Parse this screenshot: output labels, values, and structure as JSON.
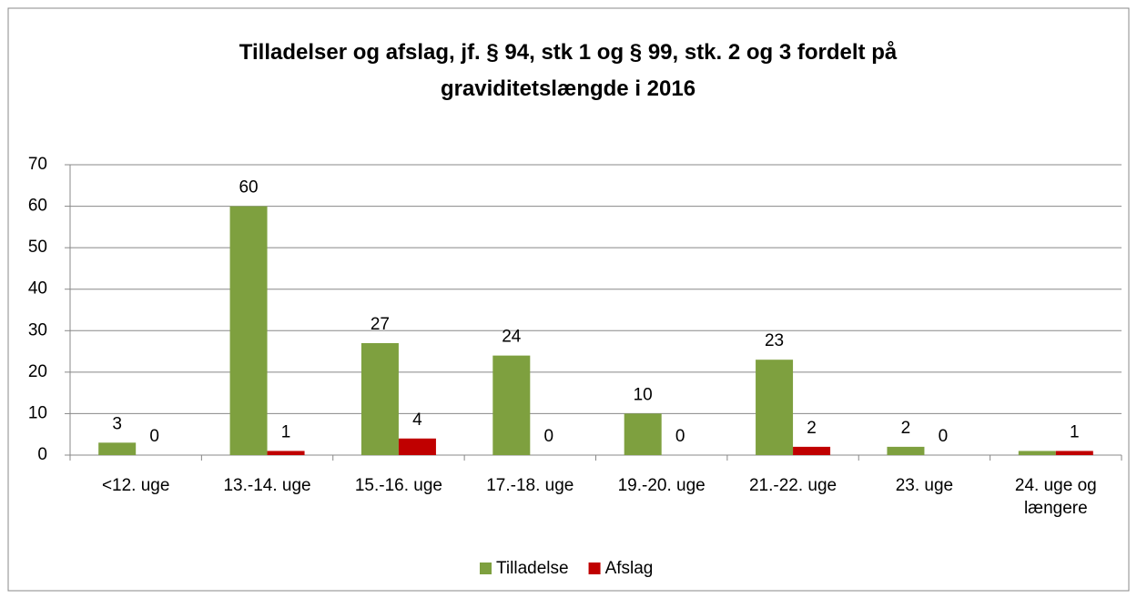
{
  "chart_data": {
    "type": "bar",
    "title": "Tilladelser og afslag, jf. § 94, stk 1 og §  99, stk. 2 og 3 fordelt på graviditetslængde i 2016",
    "categories": [
      "<12. uge",
      "13.-14. uge",
      "15.-16. uge",
      "17.-18. uge",
      "19.-20. uge",
      "21.-22. uge",
      "23. uge",
      "24. uge og længere"
    ],
    "series": [
      {
        "name": "Tilladelse",
        "color": "#7ea03f",
        "values": [
          3,
          60,
          27,
          24,
          10,
          23,
          2,
          1
        ],
        "value_labels": [
          "3",
          "60",
          "27",
          "24",
          "10",
          "23",
          "2",
          null
        ]
      },
      {
        "name": "Afslag",
        "color": "#c00000",
        "values": [
          0,
          1,
          4,
          0,
          0,
          2,
          0,
          1
        ]
      }
    ],
    "ylim": [
      0,
      70
    ],
    "yticks": [
      0,
      10,
      20,
      30,
      40,
      50,
      60,
      70
    ],
    "grid": true,
    "legend": "bottom"
  }
}
